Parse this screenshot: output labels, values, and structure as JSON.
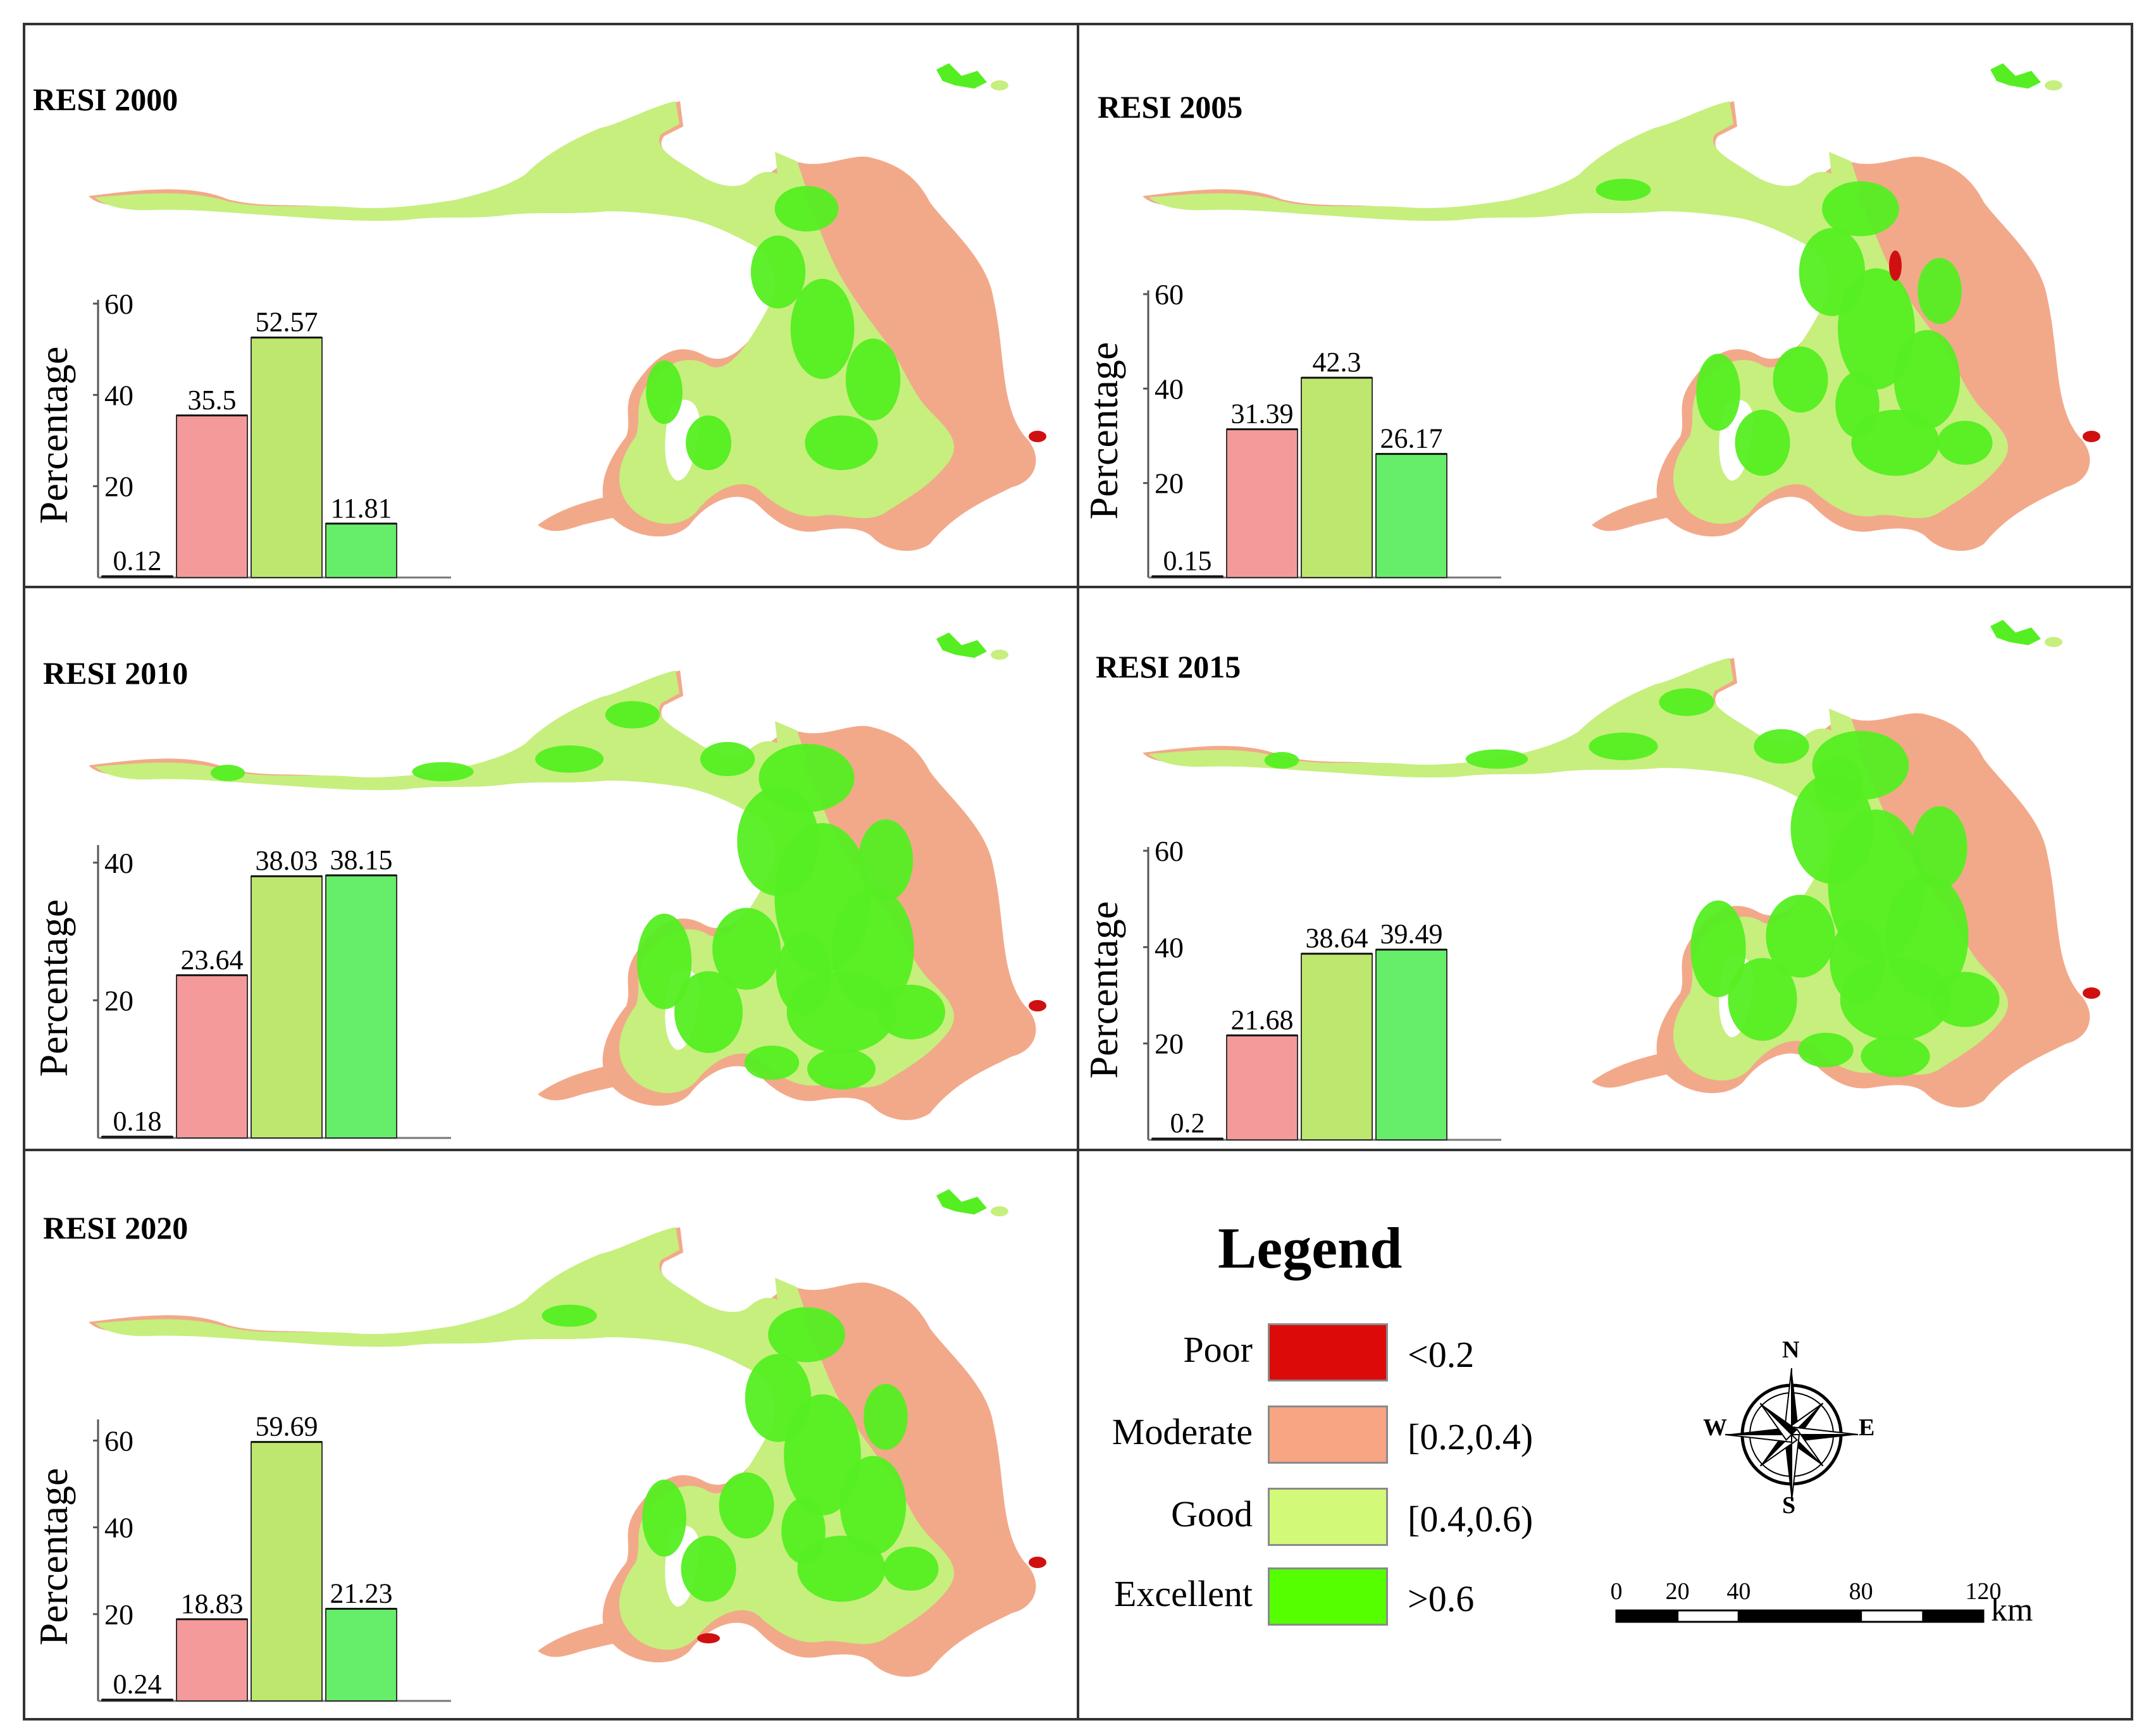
{
  "figure": {
    "border_color": "#333333",
    "panels": [
      {
        "title": "RESI 2000",
        "ylabel": "Percentage",
        "yticks": [
          "20",
          "40",
          "60"
        ],
        "ymax": 60,
        "bars": [
          {
            "label": "0.12",
            "value": 0.12
          },
          {
            "label": "35.5",
            "value": 35.5
          },
          {
            "label": "52.57",
            "value": 52.57
          },
          {
            "label": "11.81",
            "value": 11.81
          }
        ]
      },
      {
        "title": "RESI 2005",
        "ylabel": "Percentage",
        "yticks": [
          "20",
          "40",
          "60"
        ],
        "ymax": 60,
        "bars": [
          {
            "label": "0.15",
            "value": 0.15
          },
          {
            "label": "31.39",
            "value": 31.39
          },
          {
            "label": "42.3",
            "value": 42.3
          },
          {
            "label": "26.17",
            "value": 26.17
          }
        ]
      },
      {
        "title": "RESI 2010",
        "ylabel": "Percentage",
        "yticks": [
          "20",
          "40"
        ],
        "ymax": 42,
        "bars": [
          {
            "label": "0.18",
            "value": 0.18
          },
          {
            "label": "23.64",
            "value": 23.64
          },
          {
            "label": "38.03",
            "value": 38.03
          },
          {
            "label": "38.15",
            "value": 38.15
          }
        ]
      },
      {
        "title": "RESI 2015",
        "ylabel": "Percentage",
        "yticks": [
          "20",
          "40",
          "60"
        ],
        "ymax": 60,
        "bars": [
          {
            "label": "0.2",
            "value": 0.2
          },
          {
            "label": "21.68",
            "value": 21.68
          },
          {
            "label": "38.64",
            "value": 38.64
          },
          {
            "label": "39.49",
            "value": 39.49
          }
        ]
      },
      {
        "title": "RESI 2020",
        "ylabel": "Percentage",
        "yticks": [
          "20",
          "40",
          "60"
        ],
        "ymax": 64,
        "bars": [
          {
            "label": "0.24",
            "value": 0.24
          },
          {
            "label": "18.83",
            "value": 18.83
          },
          {
            "label": "59.69",
            "value": 59.69
          },
          {
            "label": "21.23",
            "value": 21.23
          }
        ]
      }
    ],
    "bar_colors": [
      "#f7a0a0",
      "#f59a9a",
      "#bde76e",
      "#66ee6a"
    ],
    "map_colors": {
      "excellent": "#55ee22",
      "good": "#c6ef7e",
      "moderate": "#f2a98a",
      "poor": "#d01010"
    }
  },
  "chart_data": [
    {
      "type": "bar",
      "title": "RESI 2000",
      "categories": [
        "Poor",
        "Moderate",
        "Good",
        "Excellent"
      ],
      "values": [
        0.12,
        35.5,
        52.57,
        11.81
      ],
      "ylabel": "Percentage",
      "ylim": [
        0,
        60
      ]
    },
    {
      "type": "bar",
      "title": "RESI 2005",
      "categories": [
        "Poor",
        "Moderate",
        "Good",
        "Excellent"
      ],
      "values": [
        0.15,
        31.39,
        42.3,
        26.17
      ],
      "ylabel": "Percentage",
      "ylim": [
        0,
        60
      ]
    },
    {
      "type": "bar",
      "title": "RESI 2010",
      "categories": [
        "Poor",
        "Moderate",
        "Good",
        "Excellent"
      ],
      "values": [
        0.18,
        23.64,
        38.03,
        38.15
      ],
      "ylabel": "Percentage",
      "ylim": [
        0,
        42
      ]
    },
    {
      "type": "bar",
      "title": "RESI 2015",
      "categories": [
        "Poor",
        "Moderate",
        "Good",
        "Excellent"
      ],
      "values": [
        0.2,
        21.68,
        38.64,
        39.49
      ],
      "ylabel": "Percentage",
      "ylim": [
        0,
        60
      ]
    },
    {
      "type": "bar",
      "title": "RESI 2020",
      "categories": [
        "Poor",
        "Moderate",
        "Good",
        "Excellent"
      ],
      "values": [
        0.24,
        18.83,
        59.69,
        21.23
      ],
      "ylabel": "Percentage",
      "ylim": [
        0,
        64
      ]
    }
  ],
  "legend": {
    "title": "Legend",
    "items": [
      {
        "name": "Poor",
        "range": "<0.2",
        "color": "#dd0a0a"
      },
      {
        "name": "Moderate",
        "range": "[0.2,0.4)",
        "color": "#f7a582"
      },
      {
        "name": "Good",
        "range": "[0.4,0.6)",
        "color": "#d2fa78"
      },
      {
        "name": "Excellent",
        "range": ">0.6",
        "color": "#55ff00"
      }
    ]
  },
  "compass": {
    "n": "N",
    "s": "S",
    "e": "E",
    "w": "W"
  },
  "scalebar": {
    "ticks": [
      "0",
      "20",
      "40",
      "80",
      "120"
    ],
    "unit": "km"
  }
}
